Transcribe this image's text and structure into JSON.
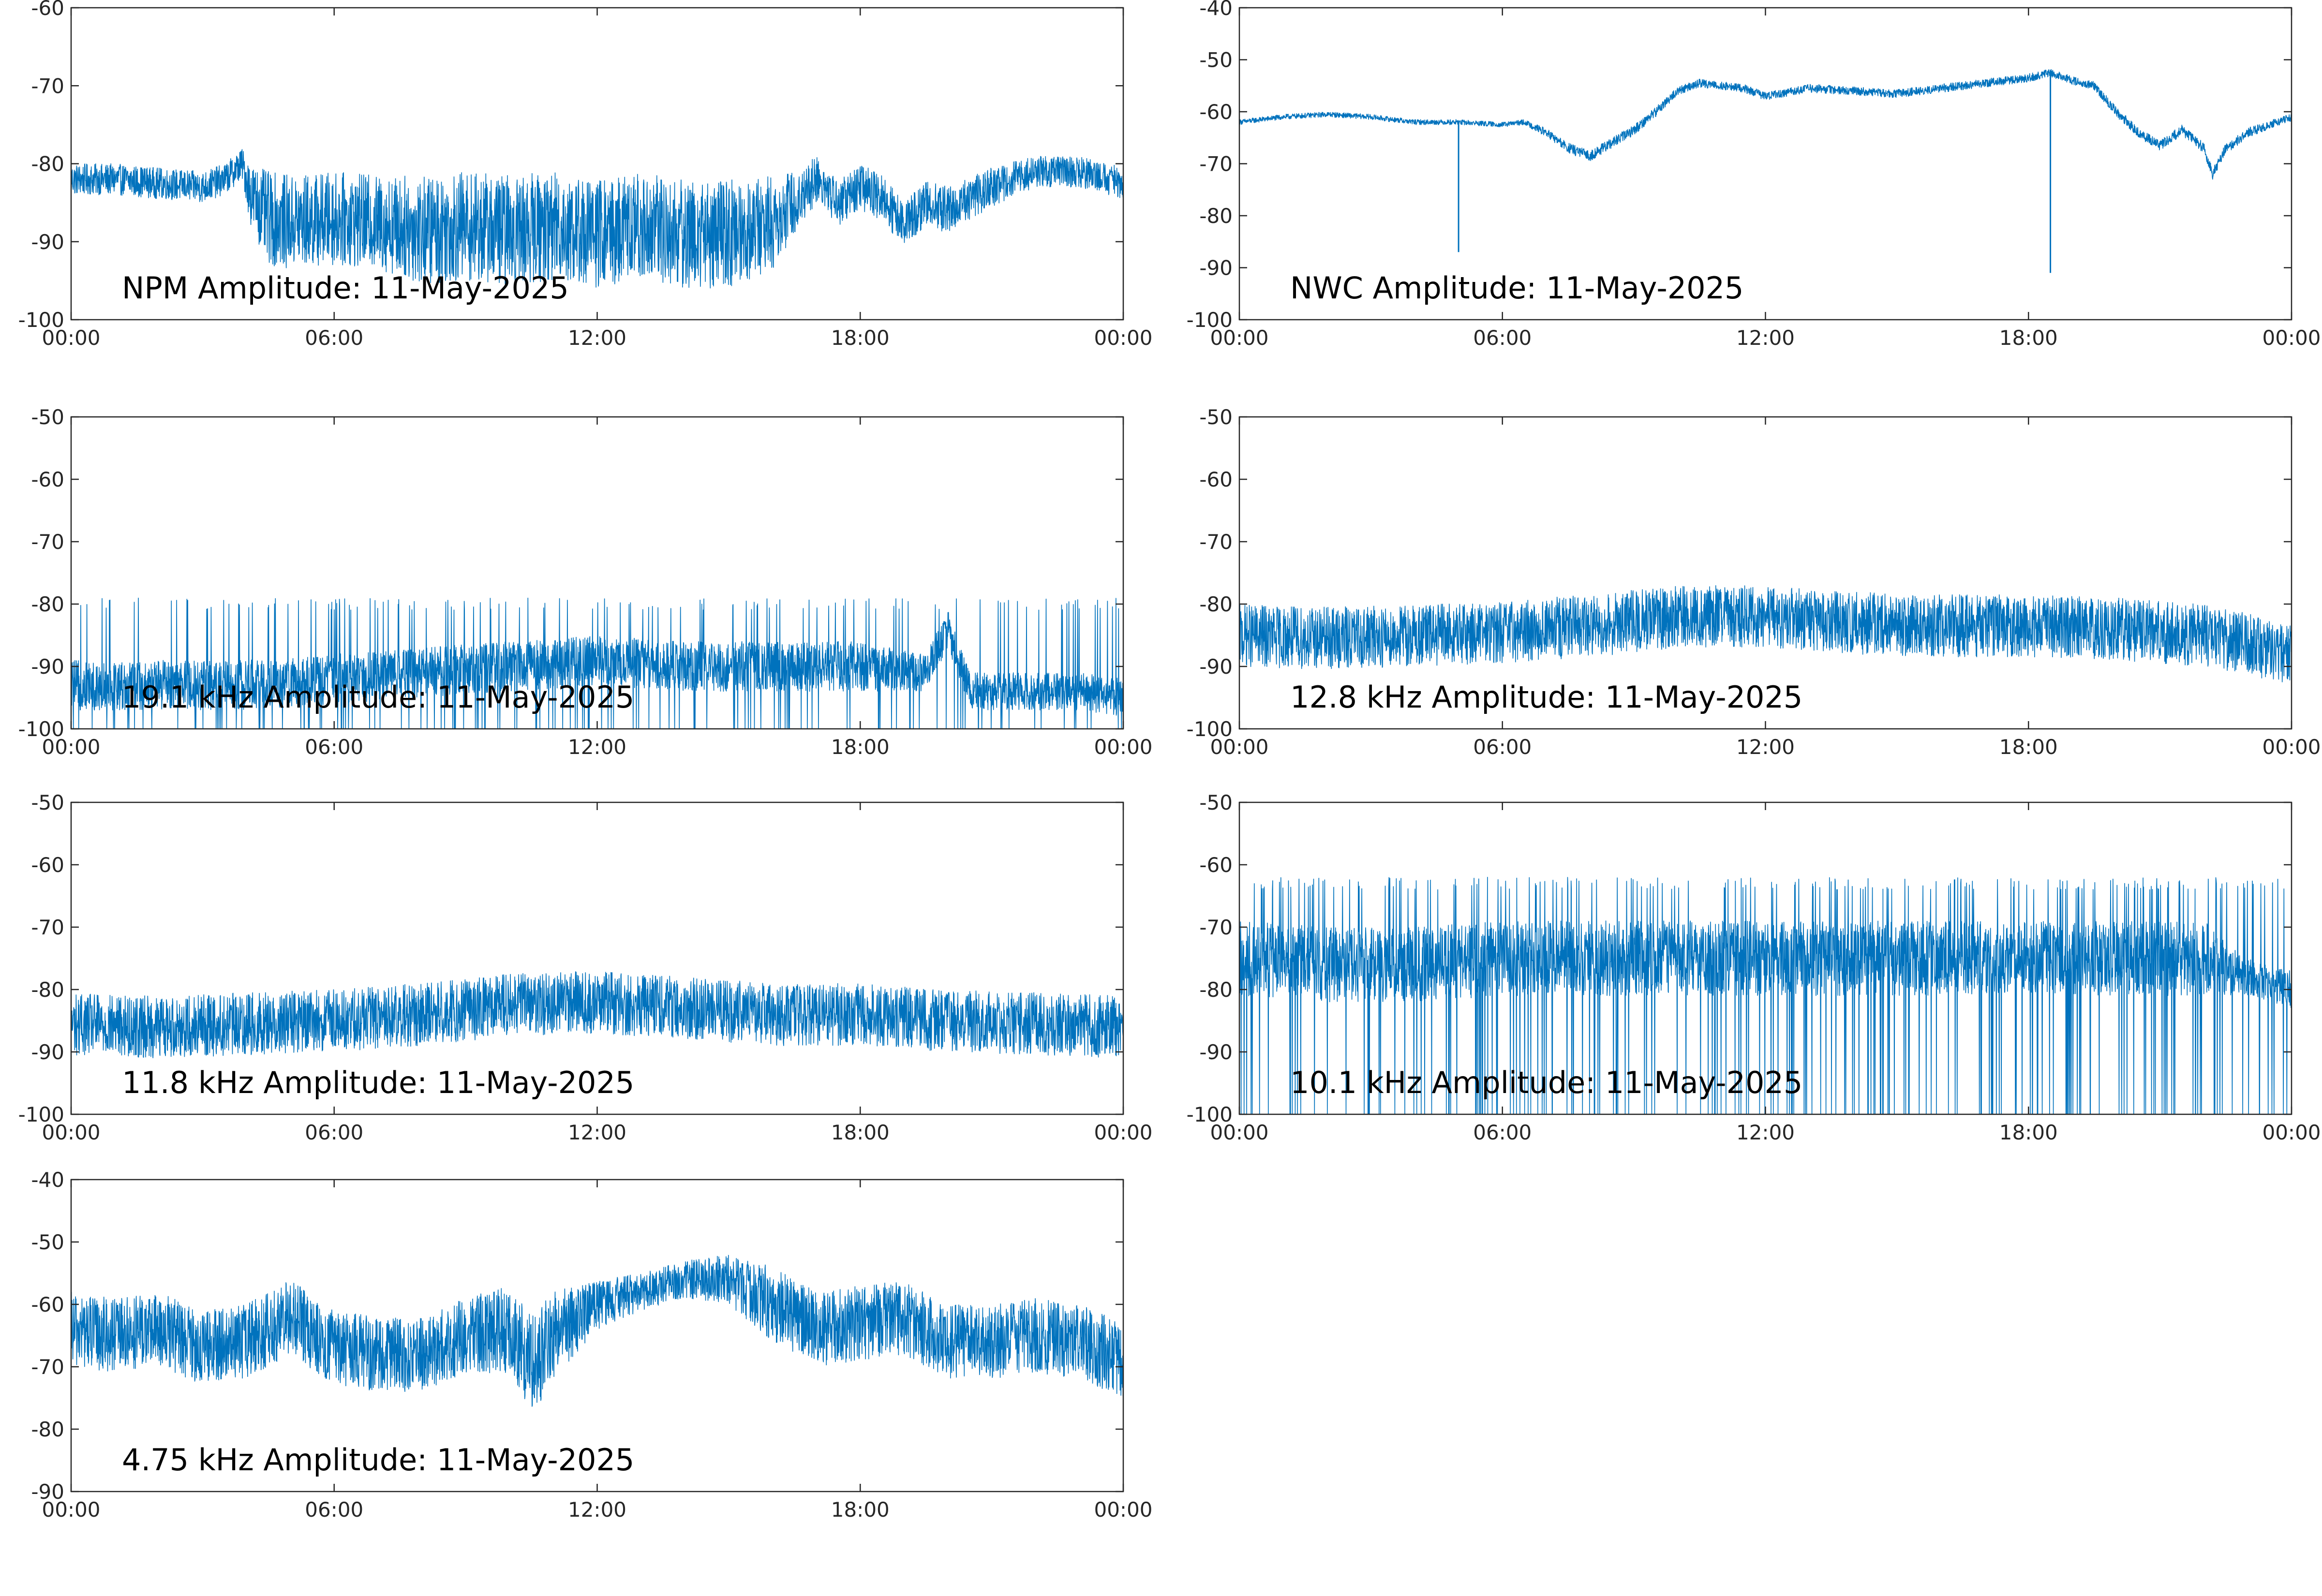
{
  "chart_data": [
    {
      "type": "line",
      "annotation": "NPM Amplitude: 11-May-2025",
      "title": "",
      "xlabel": "",
      "ylabel": "",
      "x_range": [
        0,
        24
      ],
      "x_tick_values": [
        0,
        6,
        12,
        18,
        24
      ],
      "x_tick_labels": [
        "00:00",
        "06:00",
        "12:00",
        "18:00",
        "00:00"
      ],
      "ylim": [
        -100,
        -60
      ],
      "y_tick_values": [
        -60,
        -70,
        -80,
        -90,
        -100
      ],
      "y_tick_labels": [
        "-60",
        "-70",
        "-80",
        "-90",
        "-100"
      ],
      "grid": false,
      "series": [
        {
          "color": "#0072BD",
          "x": [
            0,
            1,
            2,
            3,
            3.5,
            3.9,
            4.1,
            4.5,
            5,
            6,
            7,
            8,
            9,
            10,
            11,
            12,
            13,
            14,
            15,
            16,
            16.5,
            17,
            17.5,
            18,
            18.5,
            19,
            19.5,
            20,
            21,
            22,
            23,
            24
          ],
          "y": [
            -82,
            -82,
            -82.5,
            -83,
            -82,
            -80,
            -84,
            -87,
            -87.5,
            -87,
            -87.5,
            -88.5,
            -88,
            -88.5,
            -88,
            -89,
            -88,
            -89,
            -89,
            -87.5,
            -85,
            -82,
            -85,
            -83,
            -84.5,
            -87.5,
            -85,
            -86,
            -83,
            -81,
            -81,
            -82.5
          ],
          "noise_band": [
            2,
            2,
            2,
            2,
            2,
            2,
            4,
            6,
            6,
            6,
            6,
            7,
            7,
            7,
            7,
            7,
            7,
            7,
            7,
            6,
            4,
            3,
            3,
            3,
            3,
            3,
            3,
            3,
            2.5,
            2,
            2,
            2
          ]
        }
      ]
    },
    {
      "type": "line",
      "annotation": "NWC Amplitude: 11-May-2025",
      "title": "",
      "xlabel": "",
      "ylabel": "",
      "x_range": [
        0,
        24
      ],
      "x_tick_values": [
        0,
        6,
        12,
        18,
        24
      ],
      "x_tick_labels": [
        "00:00",
        "06:00",
        "12:00",
        "18:00",
        "00:00"
      ],
      "ylim": [
        -100,
        -40
      ],
      "y_tick_values": [
        -40,
        -50,
        -60,
        -70,
        -80,
        -90,
        -100
      ],
      "y_tick_labels": [
        "-40",
        "-50",
        "-60",
        "-70",
        "-80",
        "-90",
        "-100"
      ],
      "grid": false,
      "series": [
        {
          "color": "#0072BD",
          "x": [
            0,
            1,
            2,
            3,
            4,
            5,
            6,
            6.5,
            7,
            7.5,
            8,
            8.5,
            9,
            9.5,
            10,
            10.5,
            11,
            11.5,
            12,
            13,
            14,
            15,
            16,
            17,
            18,
            18.5,
            19,
            19.5,
            20,
            20.5,
            21,
            21.5,
            22,
            22.2,
            22.5,
            22.7,
            23,
            23.5,
            24
          ],
          "y": [
            -62,
            -61,
            -60.5,
            -61,
            -62,
            -62,
            -62.5,
            -62,
            -64,
            -67,
            -68.5,
            -66,
            -63.5,
            -60,
            -56,
            -54.5,
            -55,
            -55.5,
            -57,
            -55.5,
            -56,
            -56.5,
            -55.5,
            -54.5,
            -53.5,
            -52.5,
            -54,
            -55,
            -60,
            -64,
            -66.5,
            -63.5,
            -67,
            -72,
            -67,
            -66,
            -64,
            -62.5,
            -61
          ],
          "noise_band": [
            0.5,
            0.5,
            0.5,
            0.5,
            0.5,
            0.5,
            0.5,
            0.5,
            0.8,
            1,
            1,
            1,
            1,
            1,
            0.8,
            0.8,
            0.8,
            0.8,
            0.8,
            0.8,
            0.8,
            0.8,
            0.8,
            0.8,
            0.8,
            0.8,
            0.8,
            0.8,
            1,
            1,
            1,
            1,
            1,
            1,
            1,
            1,
            1,
            0.8,
            0.8
          ],
          "spikes": [
            {
              "x": 5.0,
              "y": -87
            },
            {
              "x": 18.5,
              "y": -91
            }
          ]
        }
      ]
    },
    {
      "type": "line",
      "annotation": "19.1 kHz Amplitude: 11-May-2025",
      "title": "",
      "xlabel": "",
      "ylabel": "",
      "x_range": [
        0,
        24
      ],
      "x_tick_values": [
        0,
        6,
        12,
        18,
        24
      ],
      "x_tick_labels": [
        "00:00",
        "06:00",
        "12:00",
        "18:00",
        "00:00"
      ],
      "ylim": [
        -100,
        -50
      ],
      "y_tick_values": [
        -50,
        -60,
        -70,
        -80,
        -90,
        -100
      ],
      "y_tick_labels": [
        "-50",
        "-60",
        "-70",
        "-80",
        "-90",
        "-100"
      ],
      "grid": false,
      "series": [
        {
          "color": "#0072BD",
          "x": [
            0,
            2,
            4,
            6,
            8,
            10,
            12,
            14,
            16,
            18,
            19.5,
            20,
            20.5,
            21,
            22,
            23,
            24
          ],
          "y": [
            -93,
            -93,
            -93,
            -92,
            -91,
            -90,
            -89,
            -90,
            -90,
            -90,
            -91,
            -84,
            -94,
            -94,
            -94,
            -94,
            -95
          ],
          "noise_band": [
            4,
            4,
            4,
            4,
            4,
            4,
            4,
            4,
            4,
            4,
            3,
            3,
            3,
            3,
            3,
            3,
            3
          ],
          "burst_top": -81,
          "burst_bottom": -100,
          "burst_fraction": 0.08
        }
      ]
    },
    {
      "type": "line",
      "annotation": "12.8 kHz Amplitude: 11-May-2025",
      "title": "",
      "xlabel": "",
      "ylabel": "",
      "x_range": [
        0,
        24
      ],
      "x_tick_values": [
        0,
        6,
        12,
        18,
        24
      ],
      "x_tick_labels": [
        "00:00",
        "06:00",
        "12:00",
        "18:00",
        "00:00"
      ],
      "ylim": [
        -100,
        -50
      ],
      "y_tick_values": [
        -50,
        -60,
        -70,
        -80,
        -90,
        -100
      ],
      "y_tick_labels": [
        "-50",
        "-60",
        "-70",
        "-80",
        "-90",
        "-100"
      ],
      "grid": false,
      "series": [
        {
          "color": "#0072BD",
          "x": [
            0,
            2,
            4,
            6,
            8,
            10,
            12,
            14,
            16,
            18,
            20,
            22,
            24
          ],
          "y": [
            -85,
            -85.5,
            -85,
            -84.5,
            -83.5,
            -82,
            -82,
            -83,
            -83.5,
            -83.5,
            -84,
            -85,
            -88
          ],
          "noise_band": [
            5,
            5,
            5,
            5,
            5,
            5,
            5,
            5,
            5,
            5,
            5,
            5,
            5
          ]
        }
      ]
    },
    {
      "type": "line",
      "annotation": "11.8 kHz Amplitude: 11-May-2025",
      "title": "",
      "xlabel": "",
      "ylabel": "",
      "x_range": [
        0,
        24
      ],
      "x_tick_values": [
        0,
        6,
        12,
        18,
        24
      ],
      "x_tick_labels": [
        "00:00",
        "06:00",
        "12:00",
        "18:00",
        "00:00"
      ],
      "ylim": [
        -100,
        -50
      ],
      "y_tick_values": [
        -50,
        -60,
        -70,
        -80,
        -90,
        -100
      ],
      "y_tick_labels": [
        "-50",
        "-60",
        "-70",
        "-80",
        "-90",
        "-100"
      ],
      "grid": false,
      "series": [
        {
          "color": "#0072BD",
          "x": [
            0,
            2,
            4,
            6,
            8,
            10,
            12,
            14,
            16,
            18,
            20,
            22,
            24
          ],
          "y": [
            -85.5,
            -86,
            -85.5,
            -85,
            -84,
            -82.5,
            -82,
            -83,
            -84,
            -84,
            -85,
            -85.5,
            -86
          ],
          "noise_band": [
            5,
            5,
            5,
            5,
            5,
            5,
            5,
            5,
            5,
            5,
            5,
            5,
            5
          ]
        }
      ]
    },
    {
      "type": "line",
      "annotation": "10.1 kHz Amplitude: 11-May-2025",
      "title": "",
      "xlabel": "",
      "ylabel": "",
      "x_range": [
        0,
        24
      ],
      "x_tick_values": [
        0,
        6,
        12,
        18,
        24
      ],
      "x_tick_labels": [
        "00:00",
        "06:00",
        "12:00",
        "18:00",
        "00:00"
      ],
      "ylim": [
        -100,
        -50
      ],
      "y_tick_values": [
        -50,
        -60,
        -70,
        -80,
        -90,
        -100
      ],
      "y_tick_labels": [
        "-50",
        "-60",
        "-70",
        "-80",
        "-90",
        "-100"
      ],
      "grid": false,
      "series": [
        {
          "color": "#0072BD",
          "x": [
            0,
            2,
            4,
            6,
            8,
            10,
            12,
            14,
            16,
            18,
            20,
            22,
            23,
            24
          ],
          "y": [
            -75,
            -76,
            -76,
            -75,
            -75,
            -75,
            -75,
            -75,
            -75,
            -75,
            -75,
            -75,
            -78,
            -80
          ],
          "noise_band": [
            6,
            6,
            6,
            6,
            6,
            6,
            6,
            6,
            6,
            6,
            6,
            6,
            3,
            3
          ],
          "burst_top": -64,
          "burst_bottom": -100,
          "burst_fraction": 0.12
        }
      ]
    },
    {
      "type": "line",
      "annotation": "4.75 kHz Amplitude: 11-May-2025",
      "title": "",
      "xlabel": "",
      "ylabel": "",
      "x_range": [
        0,
        24
      ],
      "x_tick_values": [
        0,
        6,
        12,
        18,
        24
      ],
      "x_tick_labels": [
        "00:00",
        "06:00",
        "12:00",
        "18:00",
        "00:00"
      ],
      "ylim": [
        -90,
        -40
      ],
      "y_tick_values": [
        -40,
        -50,
        -60,
        -70,
        -80,
        -90
      ],
      "y_tick_labels": [
        "-40",
        "-50",
        "-60",
        "-70",
        "-80",
        "-90"
      ],
      "grid": false,
      "series": [
        {
          "color": "#0072BD",
          "x": [
            0,
            1,
            2,
            3,
            4,
            5,
            6,
            7,
            8,
            9,
            10,
            10.5,
            11,
            12,
            13,
            14,
            15,
            16,
            17,
            18,
            19,
            20,
            21,
            22,
            23,
            24
          ],
          "y": [
            -64,
            -65,
            -64,
            -67,
            -66,
            -62,
            -67,
            -68,
            -68,
            -65,
            -64,
            -70,
            -65,
            -60,
            -58,
            -56,
            -56,
            -60,
            -64,
            -63,
            -62,
            -66,
            -66,
            -65,
            -66,
            -69
          ],
          "noise_band": [
            6,
            6,
            6,
            6,
            6,
            6,
            6,
            6,
            6,
            6,
            7,
            8,
            7,
            4,
            3,
            3,
            4,
            6,
            6,
            6,
            6,
            6,
            6,
            6,
            6,
            6
          ]
        }
      ]
    }
  ]
}
